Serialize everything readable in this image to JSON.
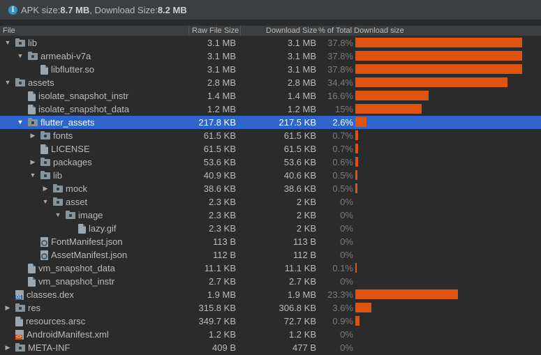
{
  "summary": {
    "apk_label": "APK size: ",
    "apk_value": "8.7 MB",
    "dl_label": ", Download Size: ",
    "dl_value": "8.2 MB"
  },
  "columns": {
    "file": "File",
    "raw": "Raw File Size",
    "download": "Download Size",
    "percent": "% of Total Download size"
  },
  "colors": {
    "bar": "#e0530f",
    "selection": "#2f65ca"
  },
  "rows": [
    {
      "name": "lib",
      "depth": 0,
      "arrow": "down",
      "icon": "folder-icon",
      "raw": "3.1 MB",
      "download": "3.1 MB",
      "pct": "37.8%",
      "pct_value": 37.8
    },
    {
      "name": "armeabi-v7a",
      "depth": 1,
      "arrow": "down",
      "icon": "folder-icon",
      "raw": "3.1 MB",
      "download": "3.1 MB",
      "pct": "37.8%",
      "pct_value": 37.8
    },
    {
      "name": "libflutter.so",
      "depth": 2,
      "arrow": "none",
      "icon": "file-icon",
      "raw": "3.1 MB",
      "download": "3.1 MB",
      "pct": "37.8%",
      "pct_value": 37.8
    },
    {
      "name": "assets",
      "depth": 0,
      "arrow": "down",
      "icon": "folder-icon",
      "raw": "2.8 MB",
      "download": "2.8 MB",
      "pct": "34.4%",
      "pct_value": 34.4
    },
    {
      "name": "isolate_snapshot_instr",
      "depth": 1,
      "arrow": "none",
      "icon": "file-icon",
      "raw": "1.4 MB",
      "download": "1.4 MB",
      "pct": "16.6%",
      "pct_value": 16.6
    },
    {
      "name": "isolate_snapshot_data",
      "depth": 1,
      "arrow": "none",
      "icon": "file-icon",
      "raw": "1.2 MB",
      "download": "1.2 MB",
      "pct": "15%",
      "pct_value": 15
    },
    {
      "name": "flutter_assets",
      "depth": 1,
      "arrow": "down",
      "icon": "folder-icon",
      "raw": "217.8 KB",
      "download": "217.5 KB",
      "pct": "2.6%",
      "pct_value": 2.6,
      "selected": true
    },
    {
      "name": "fonts",
      "depth": 2,
      "arrow": "right",
      "icon": "folder-icon",
      "raw": "61.5 KB",
      "download": "61.5 KB",
      "pct": "0.7%",
      "pct_value": 0.7
    },
    {
      "name": "LICENSE",
      "depth": 2,
      "arrow": "none",
      "icon": "file-icon",
      "raw": "61.5 KB",
      "download": "61.5 KB",
      "pct": "0.7%",
      "pct_value": 0.7
    },
    {
      "name": "packages",
      "depth": 2,
      "arrow": "right",
      "icon": "folder-icon",
      "raw": "53.6 KB",
      "download": "53.6 KB",
      "pct": "0.6%",
      "pct_value": 0.6
    },
    {
      "name": "lib",
      "depth": 2,
      "arrow": "down",
      "icon": "folder-icon",
      "raw": "40.9 KB",
      "download": "40.6 KB",
      "pct": "0.5%",
      "pct_value": 0.5
    },
    {
      "name": "mock",
      "depth": 3,
      "arrow": "right",
      "icon": "folder-icon",
      "raw": "38.6 KB",
      "download": "38.6 KB",
      "pct": "0.5%",
      "pct_value": 0.5
    },
    {
      "name": "asset",
      "depth": 3,
      "arrow": "down",
      "icon": "folder-icon",
      "raw": "2.3 KB",
      "download": "2 KB",
      "pct": "0%",
      "pct_value": 0
    },
    {
      "name": "image",
      "depth": 4,
      "arrow": "down",
      "icon": "folder-icon",
      "raw": "2.3 KB",
      "download": "2 KB",
      "pct": "0%",
      "pct_value": 0
    },
    {
      "name": "lazy.gif",
      "depth": 5,
      "arrow": "none",
      "icon": "file-icon",
      "raw": "2.3 KB",
      "download": "2 KB",
      "pct": "0%",
      "pct_value": 0
    },
    {
      "name": "FontManifest.json",
      "depth": 2,
      "arrow": "none",
      "icon": "gear-icon",
      "raw": "113 B",
      "download": "113 B",
      "pct": "0%",
      "pct_value": 0
    },
    {
      "name": "AssetManifest.json",
      "depth": 2,
      "arrow": "none",
      "icon": "gear-icon",
      "raw": "112 B",
      "download": "112 B",
      "pct": "0%",
      "pct_value": 0
    },
    {
      "name": "vm_snapshot_data",
      "depth": 1,
      "arrow": "none",
      "icon": "file-icon",
      "raw": "11.1 KB",
      "download": "11.1 KB",
      "pct": "0.1%",
      "pct_value": 0.1
    },
    {
      "name": "vm_snapshot_instr",
      "depth": 1,
      "arrow": "none",
      "icon": "file-icon",
      "raw": "2.7 KB",
      "download": "2.7 KB",
      "pct": "0%",
      "pct_value": 0
    },
    {
      "name": "classes.dex",
      "depth": 0,
      "arrow": "none",
      "icon": "dex-icon",
      "raw": "1.9 MB",
      "download": "1.9 MB",
      "pct": "23.3%",
      "pct_value": 23.3
    },
    {
      "name": "res",
      "depth": 0,
      "arrow": "right",
      "icon": "folder-icon",
      "raw": "315.8 KB",
      "download": "306.8 KB",
      "pct": "3.6%",
      "pct_value": 3.6
    },
    {
      "name": "resources.arsc",
      "depth": 0,
      "arrow": "none",
      "icon": "file-icon",
      "raw": "349.7 KB",
      "download": "72.7 KB",
      "pct": "0.9%",
      "pct_value": 0.9
    },
    {
      "name": "AndroidManifest.xml",
      "depth": 0,
      "arrow": "none",
      "icon": "xml-icon",
      "raw": "1.2 KB",
      "download": "1.2 KB",
      "pct": "0%",
      "pct_value": 0
    },
    {
      "name": "META-INF",
      "depth": 0,
      "arrow": "right",
      "icon": "folder-icon",
      "raw": "409 B",
      "download": "477 B",
      "pct": "0%",
      "pct_value": 0
    }
  ]
}
